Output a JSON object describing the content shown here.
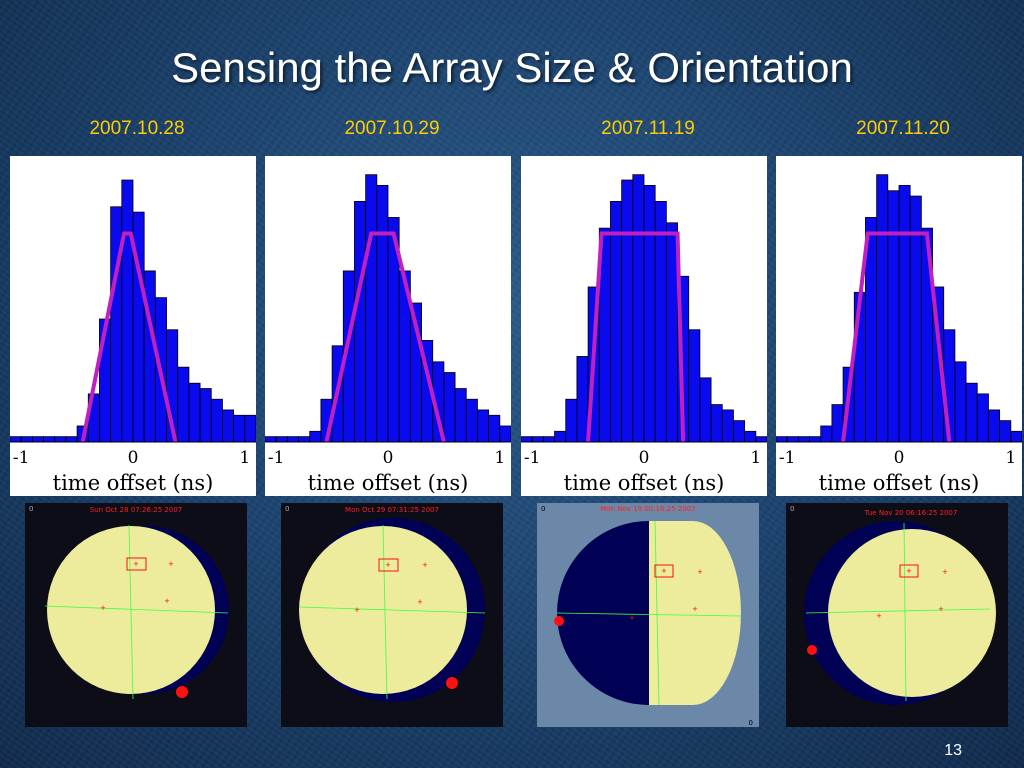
{
  "slide": {
    "title": "Sensing the Array Size & Orientation",
    "page_number": "13"
  },
  "colors": {
    "bar_fill": "#0a0aee",
    "fit_line": "#c020c0",
    "date_text": "#ffcc00",
    "sky_light": "#ecec9c",
    "sky_dark": "#000055",
    "marker": "#ff1010"
  },
  "chart_data": [
    {
      "type": "bar",
      "title": "2007.10.28",
      "xlabel": "time offset (ns)",
      "xlim": [
        -1.1,
        1.1
      ],
      "xticks": [
        "-1",
        "0",
        "1"
      ],
      "bin_edges_start": -1.1,
      "bin_width": 0.1,
      "values": [
        1,
        1,
        1,
        1,
        1,
        1,
        3,
        9,
        23,
        44,
        49,
        43,
        32,
        27,
        21,
        14,
        11,
        10,
        8,
        6,
        5,
        5
      ],
      "fit_x": [
        -0.45,
        -0.08,
        -0.02,
        0.38
      ],
      "fit_y": [
        0,
        39,
        39,
        0
      ]
    },
    {
      "type": "bar",
      "title": "2007.10.29",
      "xlabel": "time offset (ns)",
      "xlim": [
        -1.1,
        1.1
      ],
      "xticks": [
        "-1",
        "0",
        "1"
      ],
      "bin_edges_start": -1.1,
      "bin_width": 0.1,
      "values": [
        1,
        1,
        1,
        1,
        2,
        8,
        18,
        32,
        45,
        50,
        48,
        42,
        32,
        26,
        19,
        15,
        13,
        10,
        8,
        6,
        5,
        3
      ],
      "fit_x": [
        -0.55,
        -0.15,
        0.05,
        0.5
      ],
      "fit_y": [
        0,
        39,
        39,
        0
      ]
    },
    {
      "type": "bar",
      "title": "2007.11.19",
      "xlabel": "time offset (ns)",
      "xlim": [
        -1.1,
        1.1
      ],
      "xticks": [
        "-1",
        "0",
        "1"
      ],
      "bin_edges_start": -1.1,
      "bin_width": 0.1,
      "values": [
        1,
        1,
        1,
        2,
        8,
        16,
        29,
        40,
        45,
        49,
        50,
        48,
        45,
        41,
        31,
        21,
        12,
        7,
        6,
        4,
        2,
        1
      ],
      "fit_x": [
        -0.5,
        -0.38,
        0.3,
        0.35
      ],
      "fit_y": [
        0,
        39,
        39,
        0
      ]
    },
    {
      "type": "bar",
      "title": "2007.11.20",
      "xlabel": "time offset (ns)",
      "xlim": [
        -1.1,
        1.1
      ],
      "xticks": [
        "-1",
        "0",
        "1"
      ],
      "bin_edges_start": -1.1,
      "bin_width": 0.1,
      "values": [
        1,
        1,
        1,
        1,
        3,
        7,
        14,
        28,
        42,
        50,
        47,
        48,
        46,
        40,
        29,
        21,
        15,
        11,
        9,
        6,
        4,
        2
      ],
      "fit_x": [
        -0.5,
        -0.28,
        0.25,
        0.45
      ],
      "fit_y": [
        0,
        39,
        39,
        0
      ]
    }
  ],
  "sky_maps": [
    {
      "timestamp": "Sun Oct 28 07:26:25 2007",
      "phase": "gibbous-right-shadow",
      "corner_label": "0"
    },
    {
      "timestamp": "Mon Oct 29 07:31:25 2007",
      "phase": "crescent-right-shadow",
      "corner_label": "0"
    },
    {
      "timestamp": "Mon Nov 19 00:16:25 2007",
      "phase": "half-left-shadow",
      "corner_label": "0"
    },
    {
      "timestamp": "Tue Nov 20 06:16:25 2007",
      "phase": "gibbous-left-shadow",
      "corner_label": "0"
    }
  ]
}
